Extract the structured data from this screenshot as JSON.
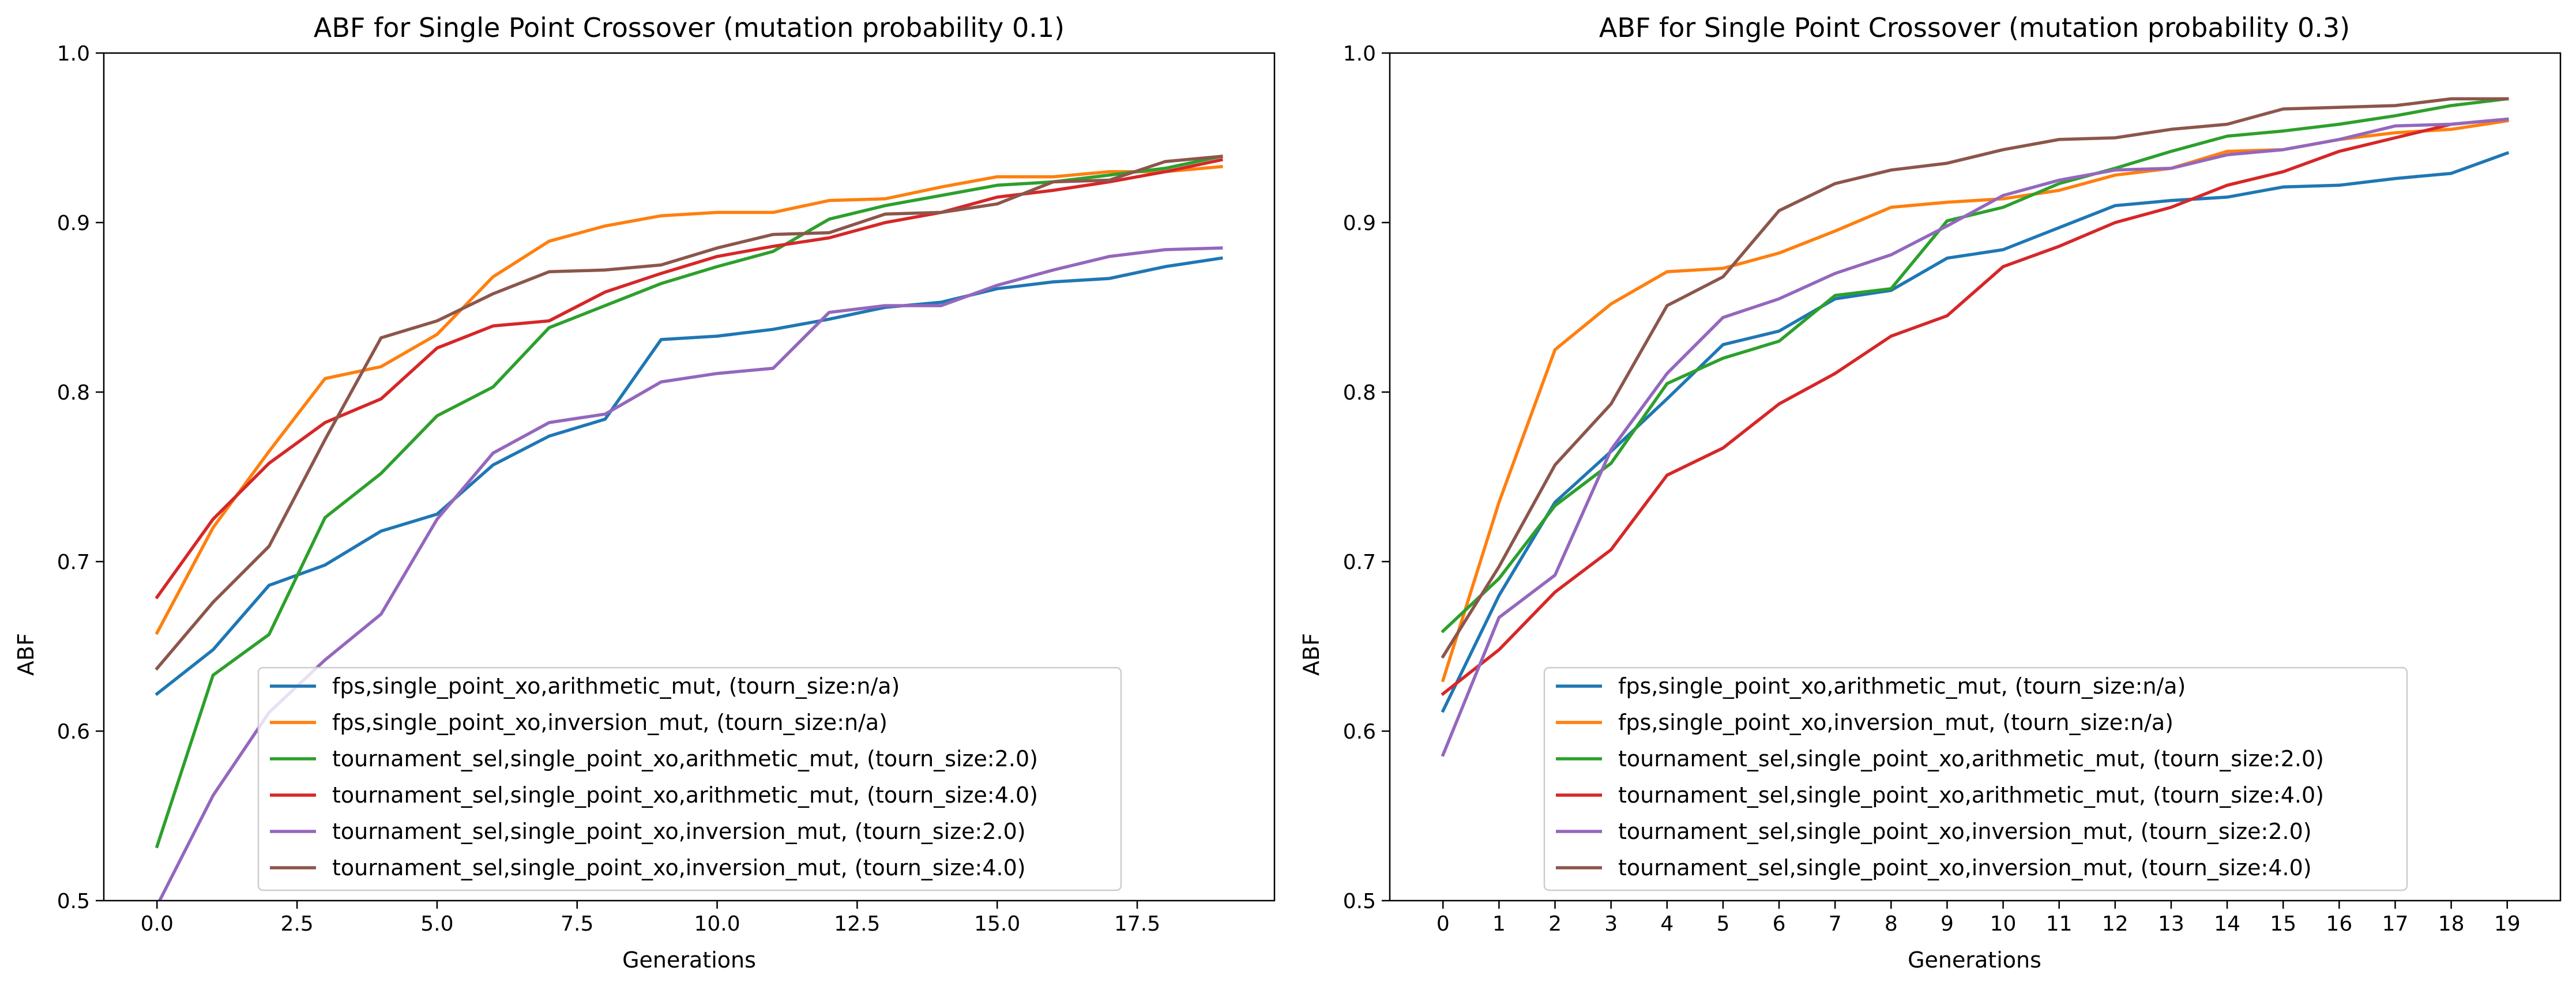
{
  "chart_data": [
    {
      "type": "line",
      "title": "ABF for Single Point Crossover (mutation probability 0.1)",
      "xlabel": "Generations",
      "ylabel": "ABF",
      "xlim": [
        -0.95,
        19.95
      ],
      "ylim": [
        0.5,
        1.0
      ],
      "xticks": [
        0,
        2.5,
        5,
        7.5,
        10,
        12.5,
        15,
        17.5
      ],
      "xtick_labels": [
        "0.0",
        "2.5",
        "5.0",
        "7.5",
        "10.0",
        "12.5",
        "15.0",
        "17.5"
      ],
      "yticks": [
        0.5,
        0.6,
        0.7,
        0.8,
        0.9,
        1.0
      ],
      "ytick_labels": [
        "0.5",
        "0.6",
        "0.7",
        "0.8",
        "0.9",
        "1.0"
      ],
      "grid": false,
      "legend_position": "lower-center",
      "x": [
        0,
        1,
        2,
        3,
        4,
        5,
        6,
        7,
        8,
        9,
        10,
        11,
        12,
        13,
        14,
        15,
        16,
        17,
        18,
        19
      ],
      "series": [
        {
          "name": "fps,single_point_xo,arithmetic_mut, (tourn_size:n/a)",
          "color": "#1f77b4",
          "values": [
            0.622,
            0.648,
            0.686,
            0.698,
            0.718,
            0.728,
            0.757,
            0.774,
            0.784,
            0.831,
            0.833,
            0.837,
            0.843,
            0.85,
            0.853,
            0.861,
            0.865,
            0.867,
            0.874,
            0.879
          ]
        },
        {
          "name": "fps,single_point_xo,inversion_mut, (tourn_size:n/a)",
          "color": "#ff7f0e",
          "values": [
            0.658,
            0.72,
            0.765,
            0.808,
            0.815,
            0.834,
            0.868,
            0.889,
            0.898,
            0.904,
            0.906,
            0.906,
            0.913,
            0.914,
            0.921,
            0.927,
            0.927,
            0.93,
            0.93,
            0.933
          ]
        },
        {
          "name": "tournament_sel,single_point_xo,arithmetic_mut, (tourn_size:2.0)",
          "color": "#2ca02c",
          "values": [
            0.532,
            0.633,
            0.657,
            0.726,
            0.752,
            0.786,
            0.803,
            0.838,
            0.851,
            0.864,
            0.874,
            0.883,
            0.902,
            0.91,
            0.916,
            0.922,
            0.924,
            0.928,
            0.932,
            0.939
          ]
        },
        {
          "name": "tournament_sel,single_point_xo,arithmetic_mut, (tourn_size:4.0)",
          "color": "#d62728",
          "values": [
            0.679,
            0.725,
            0.758,
            0.782,
            0.796,
            0.826,
            0.839,
            0.842,
            0.859,
            0.87,
            0.88,
            0.886,
            0.891,
            0.9,
            0.906,
            0.915,
            0.919,
            0.924,
            0.93,
            0.937
          ]
        },
        {
          "name": "tournament_sel,single_point_xo,inversion_mut, (tourn_size:2.0)",
          "color": "#9467bd",
          "values": [
            0.497,
            0.562,
            0.611,
            0.642,
            0.669,
            0.725,
            0.764,
            0.782,
            0.787,
            0.806,
            0.811,
            0.814,
            0.847,
            0.851,
            0.851,
            0.863,
            0.872,
            0.88,
            0.884,
            0.885
          ]
        },
        {
          "name": "tournament_sel,single_point_xo,inversion_mut, (tourn_size:4.0)",
          "color": "#8c564b",
          "values": [
            0.637,
            0.676,
            0.709,
            0.772,
            0.832,
            0.842,
            0.858,
            0.871,
            0.872,
            0.875,
            0.885,
            0.893,
            0.894,
            0.905,
            0.906,
            0.911,
            0.924,
            0.925,
            0.936,
            0.939
          ]
        }
      ]
    },
    {
      "type": "line",
      "title": "ABF for Single Point Crossover (mutation probability 0.3)",
      "xlabel": "Generations",
      "ylabel": "ABF",
      "xlim": [
        -0.95,
        19.95
      ],
      "ylim": [
        0.5,
        1.0
      ],
      "xticks": [
        0,
        1,
        2,
        3,
        4,
        5,
        6,
        7,
        8,
        9,
        10,
        11,
        12,
        13,
        14,
        15,
        16,
        17,
        18,
        19
      ],
      "xtick_labels": [
        "0",
        "1",
        "2",
        "3",
        "4",
        "5",
        "6",
        "7",
        "8",
        "9",
        "10",
        "11",
        "12",
        "13",
        "14",
        "15",
        "16",
        "17",
        "18",
        "19"
      ],
      "yticks": [
        0.5,
        0.6,
        0.7,
        0.8,
        0.9,
        1.0
      ],
      "ytick_labels": [
        "0.5",
        "0.6",
        "0.7",
        "0.8",
        "0.9",
        "1.0"
      ],
      "grid": false,
      "legend_position": "lower-center",
      "x": [
        0,
        1,
        2,
        3,
        4,
        5,
        6,
        7,
        8,
        9,
        10,
        11,
        12,
        13,
        14,
        15,
        16,
        17,
        18,
        19
      ],
      "series": [
        {
          "name": "fps,single_point_xo,arithmetic_mut, (tourn_size:n/a)",
          "color": "#1f77b4",
          "values": [
            0.612,
            0.68,
            0.735,
            0.765,
            0.796,
            0.828,
            0.836,
            0.855,
            0.86,
            0.879,
            0.884,
            0.897,
            0.91,
            0.913,
            0.915,
            0.921,
            0.922,
            0.926,
            0.929,
            0.941
          ]
        },
        {
          "name": "fps,single_point_xo,inversion_mut, (tourn_size:n/a)",
          "color": "#ff7f0e",
          "values": [
            0.63,
            0.735,
            0.825,
            0.852,
            0.871,
            0.873,
            0.882,
            0.895,
            0.909,
            0.912,
            0.914,
            0.919,
            0.928,
            0.932,
            0.942,
            0.943,
            0.949,
            0.953,
            0.955,
            0.96
          ]
        },
        {
          "name": "tournament_sel,single_point_xo,arithmetic_mut, (tourn_size:2.0)",
          "color": "#2ca02c",
          "values": [
            0.659,
            0.69,
            0.733,
            0.758,
            0.805,
            0.82,
            0.83,
            0.857,
            0.861,
            0.901,
            0.909,
            0.923,
            0.932,
            0.942,
            0.951,
            0.954,
            0.958,
            0.963,
            0.969,
            0.973
          ]
        },
        {
          "name": "tournament_sel,single_point_xo,arithmetic_mut, (tourn_size:4.0)",
          "color": "#d62728",
          "values": [
            0.622,
            0.648,
            0.682,
            0.707,
            0.751,
            0.767,
            0.793,
            0.811,
            0.833,
            0.845,
            0.874,
            0.886,
            0.9,
            0.909,
            0.922,
            0.93,
            0.942,
            0.95,
            0.958,
            0.961
          ]
        },
        {
          "name": "tournament_sel,single_point_xo,inversion_mut, (tourn_size:2.0)",
          "color": "#9467bd",
          "values": [
            0.586,
            0.667,
            0.692,
            0.766,
            0.811,
            0.844,
            0.855,
            0.87,
            0.881,
            0.898,
            0.916,
            0.925,
            0.931,
            0.932,
            0.94,
            0.943,
            0.949,
            0.957,
            0.958,
            0.961
          ]
        },
        {
          "name": "tournament_sel,single_point_xo,inversion_mut, (tourn_size:4.0)",
          "color": "#8c564b",
          "values": [
            0.644,
            0.697,
            0.757,
            0.793,
            0.851,
            0.868,
            0.907,
            0.923,
            0.931,
            0.935,
            0.943,
            0.949,
            0.95,
            0.955,
            0.958,
            0.967,
            0.968,
            0.969,
            0.973,
            0.973
          ]
        }
      ]
    }
  ]
}
